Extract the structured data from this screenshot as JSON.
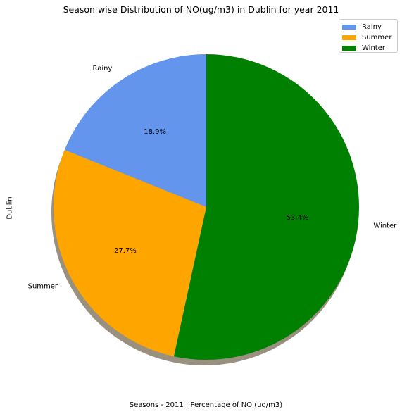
{
  "chart_data": {
    "type": "pie",
    "title": "Season wise Distribution of NO(ug/m3) in Dublin for year 2011",
    "xlabel": "Seasons - 2011 : Percentage of NO (ug/m3)",
    "ylabel": "Dublin",
    "categories": [
      "Rainy",
      "Summer",
      "Winter"
    ],
    "values": [
      18.9,
      27.7,
      53.4
    ],
    "value_labels": [
      "18.9%",
      "27.7%",
      "53.4%"
    ],
    "colors": [
      "#6495ED",
      "#FFA500",
      "#008000"
    ],
    "shadow": true,
    "start_angle_deg": 90,
    "legend": {
      "position": "top-right",
      "entries": [
        "Rainy",
        "Summer",
        "Winter"
      ]
    }
  }
}
